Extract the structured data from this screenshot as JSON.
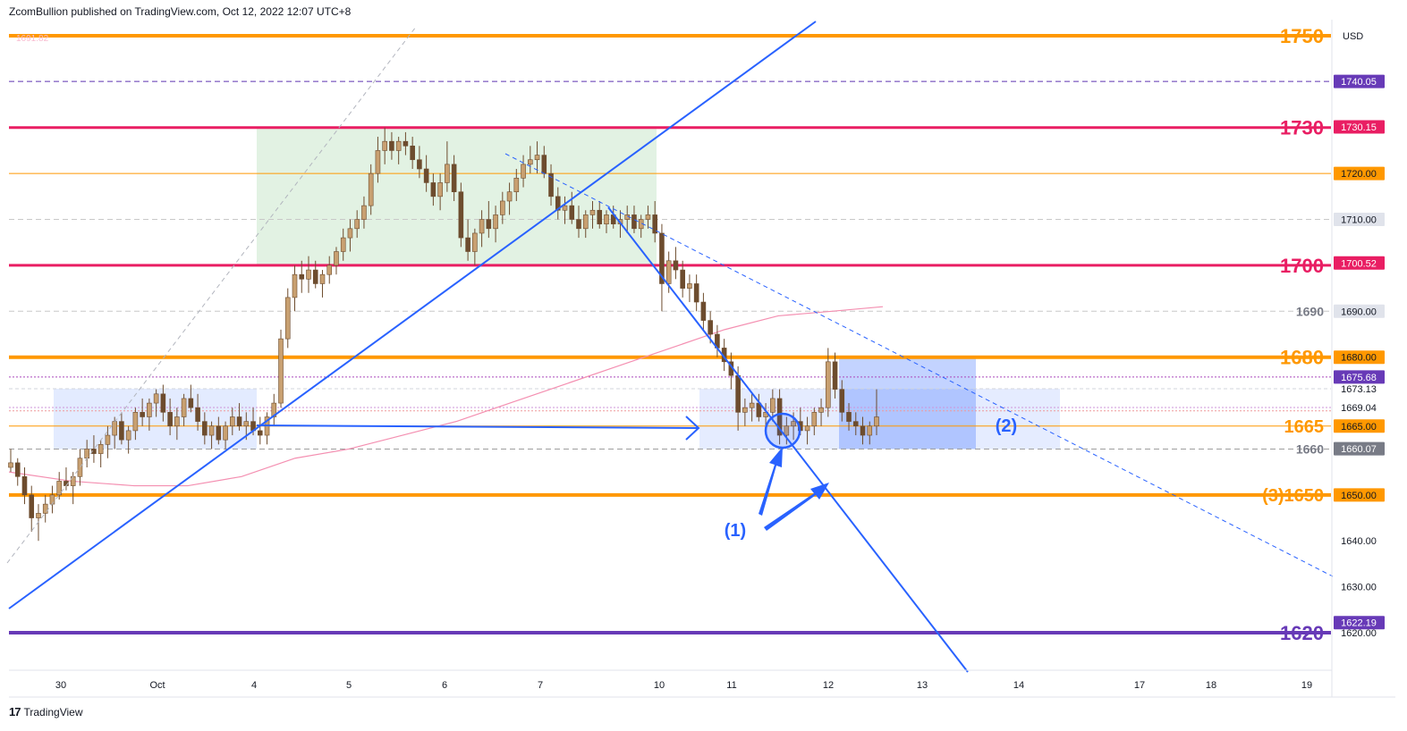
{
  "header": {
    "text": "ZcomBullion published on TradingView.com, Oct 12, 2022 12:07 UTC+8"
  },
  "footer": {
    "logo": "17",
    "brand": "TradingView"
  },
  "colors": {
    "orange": "#ff9800",
    "pink": "#e91e63",
    "purple": "#673ab7",
    "blue": "#2962ff",
    "candle": "#7a5a3a",
    "ma": "#f48fb1"
  },
  "chart_data": {
    "type": "candlestick",
    "symbol_currency": "USD",
    "topleft_price": "1691.82",
    "ylim": [
      1617,
      1753
    ],
    "x_ticks": [
      "30",
      "Oct",
      "4",
      "5",
      "6",
      "7",
      "10",
      "11",
      "12",
      "13",
      "14",
      "17",
      "18",
      "19"
    ],
    "axis_price_ticks": [
      {
        "label": "1740.05",
        "value": 1740.05,
        "style": "purple"
      },
      {
        "label": "1730.15",
        "value": 1730.15,
        "style": "pink"
      },
      {
        "label": "1720.00",
        "value": 1720.0,
        "style": "orange"
      },
      {
        "label": "1710.00",
        "value": 1710.0,
        "style": "gray"
      },
      {
        "label": "1700.52",
        "value": 1700.52,
        "style": "pink"
      },
      {
        "label": "1690.00",
        "value": 1690.0,
        "style": "gray"
      },
      {
        "label": "1680.00",
        "value": 1680.0,
        "style": "orange"
      },
      {
        "label": "1675.68",
        "value": 1675.68,
        "style": "purple"
      },
      {
        "label": "1673.13",
        "value": 1673.13,
        "style": "plain"
      },
      {
        "label": "1669.04",
        "value": 1669.04,
        "style": "plain"
      },
      {
        "label": "1665.00",
        "value": 1665.0,
        "style": "orange"
      },
      {
        "label": "1660.07",
        "value": 1660.07,
        "style": "darkgray"
      },
      {
        "label": "1650.00",
        "value": 1650.0,
        "style": "orange"
      },
      {
        "label": "1640.00",
        "value": 1640.0,
        "style": "plain"
      },
      {
        "label": "1630.00",
        "value": 1630.0,
        "style": "plain"
      },
      {
        "label": "1622.19",
        "value": 1622.19,
        "style": "purple"
      },
      {
        "label": "1620.00",
        "value": 1620.0,
        "style": "plain"
      }
    ],
    "levels": [
      {
        "label": "1750",
        "value": 1750,
        "color": "#ff9800",
        "width": 4,
        "dash": "",
        "labelsize": 22
      },
      {
        "label": "",
        "value": 1740.05,
        "color": "#5e35b1",
        "width": 1,
        "dash": "6,4",
        "labelsize": 0
      },
      {
        "label": "1730",
        "value": 1730,
        "color": "#e91e63",
        "width": 3,
        "dash": "",
        "labelsize": 22
      },
      {
        "label": "",
        "value": 1720,
        "color": "#ff9800",
        "width": 1,
        "dash": "",
        "labelsize": 0
      },
      {
        "label": "",
        "value": 1710,
        "color": "#c8c8c8",
        "width": 1,
        "dash": "6,4",
        "labelsize": 0
      },
      {
        "label": "1700",
        "value": 1700,
        "color": "#e91e63",
        "width": 3,
        "dash": "",
        "labelsize": 22
      },
      {
        "label": "1690",
        "value": 1690,
        "color": "#c8c8c8",
        "width": 1,
        "dash": "6,4",
        "labelsize": 14
      },
      {
        "label": "1680",
        "value": 1680,
        "color": "#ff9800",
        "width": 4,
        "dash": "",
        "labelsize": 22
      },
      {
        "label": "",
        "value": 1675.68,
        "color": "#ab47bc",
        "width": 1,
        "dash": "2,2",
        "labelsize": 0
      },
      {
        "label": "1665",
        "value": 1665,
        "color": "#ff9800",
        "width": 1,
        "dash": "",
        "labelsize": 20
      },
      {
        "label": "1660",
        "value": 1660,
        "color": "#9e9e9e",
        "width": 1,
        "dash": "6,4",
        "labelsize": 14
      },
      {
        "label": "(3)1650",
        "value": 1650,
        "color": "#ff9800",
        "width": 4,
        "dash": "",
        "labelsize": 20
      },
      {
        "label": "1620",
        "value": 1620,
        "color": "#673ab7",
        "width": 4,
        "dash": "",
        "labelsize": 22
      }
    ],
    "annotations": [
      "(1)",
      "(2)"
    ],
    "candles": [
      [
        1656,
        1660,
        1655,
        1657
      ],
      [
        1657,
        1658,
        1652,
        1654
      ],
      [
        1654,
        1656,
        1648,
        1650
      ],
      [
        1650,
        1652,
        1642,
        1645
      ],
      [
        1645,
        1648,
        1640,
        1646
      ],
      [
        1646,
        1650,
        1644,
        1648
      ],
      [
        1648,
        1652,
        1646,
        1650
      ],
      [
        1650,
        1655,
        1649,
        1653
      ],
      [
        1653,
        1656,
        1651,
        1652
      ],
      [
        1652,
        1655,
        1648,
        1654
      ],
      [
        1654,
        1660,
        1652,
        1658
      ],
      [
        1658,
        1662,
        1656,
        1660
      ],
      [
        1660,
        1663,
        1657,
        1659
      ],
      [
        1659,
        1662,
        1656,
        1661
      ],
      [
        1661,
        1665,
        1658,
        1663
      ],
      [
        1663,
        1667,
        1660,
        1666
      ],
      [
        1666,
        1668,
        1661,
        1662
      ],
      [
        1662,
        1665,
        1659,
        1664
      ],
      [
        1664,
        1669,
        1662,
        1668
      ],
      [
        1668,
        1671,
        1665,
        1667
      ],
      [
        1667,
        1671,
        1664,
        1670
      ],
      [
        1670,
        1673,
        1667,
        1672
      ],
      [
        1672,
        1674,
        1666,
        1668
      ],
      [
        1668,
        1671,
        1663,
        1665
      ],
      [
        1665,
        1669,
        1662,
        1667
      ],
      [
        1667,
        1672,
        1665,
        1671
      ],
      [
        1671,
        1674,
        1668,
        1669
      ],
      [
        1669,
        1672,
        1664,
        1666
      ],
      [
        1666,
        1668,
        1661,
        1663
      ],
      [
        1663,
        1666,
        1660,
        1665
      ],
      [
        1665,
        1667,
        1661,
        1662
      ],
      [
        1662,
        1666,
        1660,
        1665
      ],
      [
        1665,
        1669,
        1663,
        1667
      ],
      [
        1667,
        1670,
        1664,
        1665
      ],
      [
        1665,
        1668,
        1662,
        1666
      ],
      [
        1666,
        1669,
        1663,
        1664
      ],
      [
        1664,
        1667,
        1661,
        1663
      ],
      [
        1663,
        1668,
        1661,
        1667
      ],
      [
        1667,
        1672,
        1665,
        1670
      ],
      [
        1670,
        1686,
        1669,
        1684
      ],
      [
        1684,
        1695,
        1682,
        1693
      ],
      [
        1693,
        1700,
        1690,
        1698
      ],
      [
        1698,
        1701,
        1694,
        1697
      ],
      [
        1697,
        1702,
        1694,
        1699
      ],
      [
        1699,
        1701,
        1695,
        1696
      ],
      [
        1696,
        1699,
        1693,
        1698
      ],
      [
        1698,
        1702,
        1696,
        1700
      ],
      [
        1700,
        1704,
        1698,
        1703
      ],
      [
        1703,
        1708,
        1701,
        1706
      ],
      [
        1706,
        1710,
        1703,
        1708
      ],
      [
        1708,
        1712,
        1706,
        1710
      ],
      [
        1710,
        1715,
        1708,
        1713
      ],
      [
        1713,
        1722,
        1711,
        1720
      ],
      [
        1720,
        1728,
        1718,
        1725
      ],
      [
        1725,
        1730,
        1722,
        1727
      ],
      [
        1727,
        1729,
        1723,
        1725
      ],
      [
        1725,
        1728,
        1722,
        1727
      ],
      [
        1727,
        1729,
        1724,
        1726
      ],
      [
        1726,
        1728,
        1721,
        1723
      ],
      [
        1723,
        1726,
        1719,
        1721
      ],
      [
        1721,
        1724,
        1716,
        1718
      ],
      [
        1718,
        1720,
        1713,
        1715
      ],
      [
        1715,
        1720,
        1712,
        1718
      ],
      [
        1718,
        1727,
        1716,
        1722
      ],
      [
        1722,
        1724,
        1714,
        1716
      ],
      [
        1716,
        1718,
        1704,
        1706
      ],
      [
        1706,
        1710,
        1701,
        1703
      ],
      [
        1703,
        1708,
        1700,
        1707
      ],
      [
        1707,
        1712,
        1704,
        1710
      ],
      [
        1710,
        1714,
        1706,
        1708
      ],
      [
        1708,
        1713,
        1705,
        1711
      ],
      [
        1711,
        1716,
        1709,
        1714
      ],
      [
        1714,
        1718,
        1711,
        1716
      ],
      [
        1716,
        1721,
        1714,
        1719
      ],
      [
        1719,
        1724,
        1717,
        1722
      ],
      [
        1722,
        1726,
        1720,
        1723
      ],
      [
        1723,
        1727,
        1720,
        1724
      ],
      [
        1724,
        1726,
        1719,
        1720
      ],
      [
        1720,
        1722,
        1713,
        1715
      ],
      [
        1715,
        1717,
        1710,
        1712
      ],
      [
        1712,
        1715,
        1709,
        1713
      ],
      [
        1713,
        1716,
        1709,
        1710
      ],
      [
        1710,
        1713,
        1706,
        1708
      ],
      [
        1708,
        1712,
        1706,
        1711
      ],
      [
        1711,
        1714,
        1708,
        1712
      ],
      [
        1712,
        1714,
        1708,
        1709
      ],
      [
        1709,
        1712,
        1707,
        1711
      ],
      [
        1711,
        1713,
        1708,
        1709
      ],
      [
        1709,
        1712,
        1706,
        1710
      ],
      [
        1710,
        1713,
        1707,
        1711
      ],
      [
        1711,
        1713,
        1707,
        1708
      ],
      [
        1708,
        1711,
        1706,
        1710
      ],
      [
        1710,
        1713,
        1708,
        1711
      ],
      [
        1711,
        1714,
        1705,
        1707
      ],
      [
        1707,
        1709,
        1690,
        1696
      ],
      [
        1696,
        1703,
        1694,
        1701
      ],
      [
        1701,
        1704,
        1697,
        1699
      ],
      [
        1699,
        1701,
        1693,
        1695
      ],
      [
        1695,
        1698,
        1692,
        1696
      ],
      [
        1696,
        1698,
        1690,
        1692
      ],
      [
        1692,
        1694,
        1686,
        1688
      ],
      [
        1688,
        1690,
        1683,
        1685
      ],
      [
        1685,
        1687,
        1680,
        1682
      ],
      [
        1682,
        1684,
        1677,
        1679
      ],
      [
        1679,
        1681,
        1673,
        1676
      ],
      [
        1676,
        1678,
        1664,
        1668
      ],
      [
        1668,
        1671,
        1665,
        1669
      ],
      [
        1669,
        1672,
        1666,
        1670
      ],
      [
        1670,
        1672,
        1666,
        1667
      ],
      [
        1667,
        1670,
        1664,
        1668
      ],
      [
        1668,
        1673,
        1666,
        1671
      ],
      [
        1671,
        1673,
        1661,
        1663
      ],
      [
        1663,
        1667,
        1661,
        1665
      ],
      [
        1665,
        1668,
        1662,
        1666
      ],
      [
        1666,
        1669,
        1663,
        1664
      ],
      [
        1664,
        1667,
        1661,
        1665
      ],
      [
        1665,
        1669,
        1663,
        1668
      ],
      [
        1668,
        1671,
        1665,
        1669
      ],
      [
        1669,
        1682,
        1667,
        1679
      ],
      [
        1679,
        1681,
        1671,
        1673
      ],
      [
        1673,
        1675,
        1666,
        1668
      ],
      [
        1668,
        1670,
        1664,
        1666
      ],
      [
        1666,
        1668,
        1663,
        1665
      ],
      [
        1665,
        1667,
        1661,
        1663
      ],
      [
        1663,
        1666,
        1661,
        1665
      ],
      [
        1665,
        1673,
        1663,
        1667
      ]
    ],
    "moving_average": [
      [
        0,
        1655
      ],
      [
        70,
        1653
      ],
      [
        140,
        1652
      ],
      [
        200,
        1652
      ],
      [
        260,
        1654
      ],
      [
        320,
        1658
      ],
      [
        380,
        1660
      ],
      [
        440,
        1663
      ],
      [
        500,
        1666
      ],
      [
        560,
        1670
      ],
      [
        620,
        1674
      ],
      [
        680,
        1678
      ],
      [
        740,
        1682
      ],
      [
        800,
        1686
      ],
      [
        860,
        1689
      ],
      [
        920,
        1690
      ],
      [
        977,
        1691
      ]
    ]
  }
}
